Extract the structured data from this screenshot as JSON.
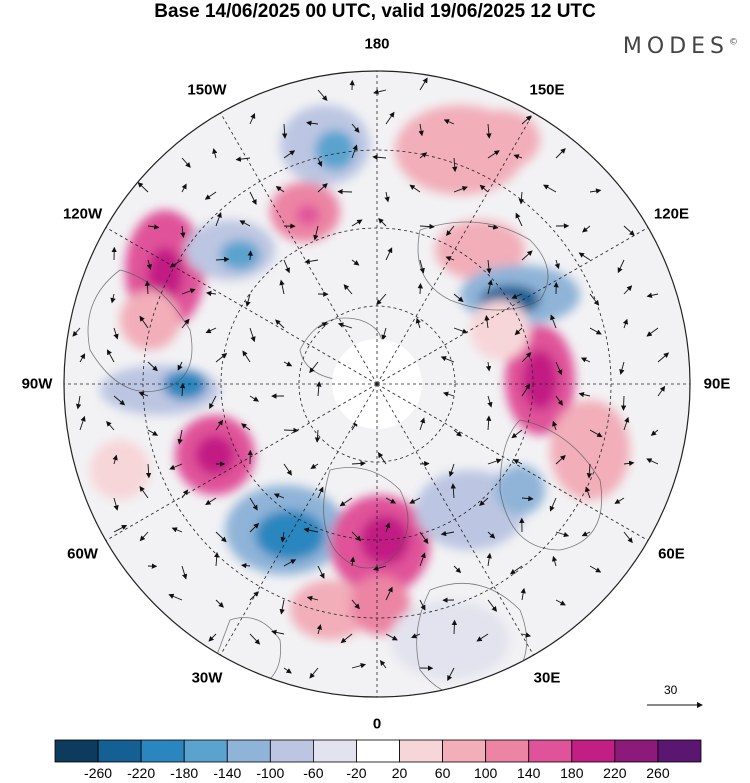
{
  "title": "Base 14/06/2025 00 UTC, valid 19/06/2025 12 UTC",
  "brand": "MODES",
  "brand_mark": "©",
  "map": {
    "projection": "north-polar-stereographic",
    "longitude_labels": [
      "180",
      "150E",
      "120E",
      "90E",
      "60E",
      "30E",
      "0",
      "30W",
      "60W",
      "90W",
      "120W",
      "150W"
    ],
    "reference_vector_label": "30",
    "icons": [
      "arrow-right-icon"
    ]
  },
  "colorbar": {
    "tick_labels": [
      "-260",
      "-220",
      "-180",
      "-140",
      "-100",
      "-60",
      "-20",
      "20",
      "60",
      "100",
      "140",
      "180",
      "220",
      "260"
    ],
    "colors": [
      "#0d3b5e",
      "#145f93",
      "#2a86bf",
      "#5aa3cf",
      "#8fb4d8",
      "#bcc6e2",
      "#e3e3ef",
      "#ffffff",
      "#f7d6d9",
      "#f2aeb9",
      "#ec84a4",
      "#e0529a",
      "#c21f84",
      "#8c1a7a",
      "#5a1670"
    ]
  }
}
